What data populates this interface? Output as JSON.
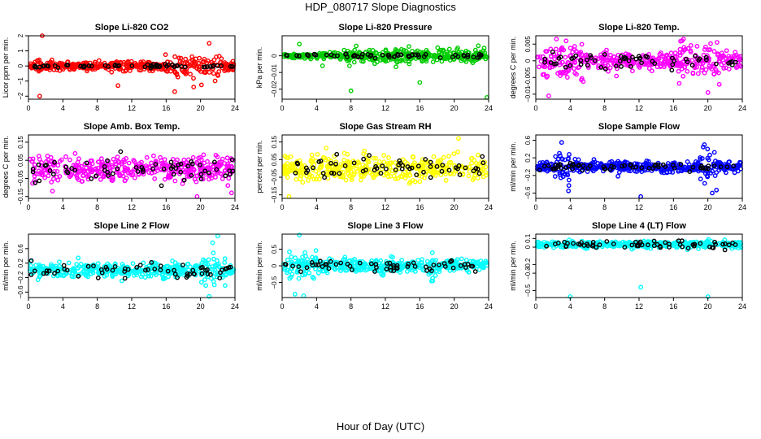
{
  "figure": {
    "title": "HDP_080717  Slope Diagnostics",
    "xlabel": "Hour of Day (UTC)"
  },
  "chart_data": [
    {
      "type": "scatter",
      "title": "Slope Li-820 CO2",
      "ylabel": "Licor ppm per min.",
      "xlim": [
        0,
        24
      ],
      "ylim": [
        -2.2,
        2.0
      ],
      "yticks": [
        -2,
        -1,
        0,
        1,
        2
      ],
      "xticks": [
        0,
        4,
        8,
        12,
        16,
        20,
        24
      ],
      "color": "#ff0000",
      "series": [
        {
          "spread": 0.3,
          "clusters": [
            [
              2.0,
              10.5,
              0.22
            ],
            [
              15.5,
              22.5,
              0.65
            ]
          ],
          "outliers": [
            [
              1.6,
              2.0
            ],
            [
              1.3,
              -2.0
            ],
            [
              10.4,
              -1.3
            ],
            [
              17.0,
              -1.7
            ],
            [
              21.0,
              1.5
            ],
            [
              19.2,
              -1.4
            ]
          ],
          "black_spread": 0.08
        }
      ]
    },
    {
      "type": "scatter",
      "title": "Slope Li-820 Pressure",
      "ylabel": "kPa per min.",
      "xlim": [
        0,
        24
      ],
      "ylim": [
        -0.026,
        0.012
      ],
      "yticks": [
        -0.02,
        -0.01,
        0.0
      ],
      "xticks": [
        0,
        4,
        8,
        12,
        16,
        20,
        24
      ],
      "color": "#00cc00",
      "series": [
        {
          "spread": 0.0015,
          "clusters": [
            [
              7,
              24,
              0.004
            ]
          ],
          "outliers": [
            [
              8.0,
              -0.021
            ],
            [
              2.0,
              0.007
            ],
            [
              23.8,
              -0.025
            ],
            [
              4.7,
              -0.006
            ],
            [
              16.0,
              -0.016
            ],
            [
              22.8,
              0.006
            ]
          ],
          "black_spread": 0.001
        }
      ]
    },
    {
      "type": "scatter",
      "title": "Slope Li-820 Temp.",
      "ylabel": "degrees C per min.",
      "xlim": [
        0,
        24
      ],
      "ylim": [
        -0.0115,
        0.0075
      ],
      "yticks": [
        -0.01,
        -0.005,
        0.0,
        0.005
      ],
      "xticks": [
        0,
        4,
        8,
        12,
        16,
        20,
        24
      ],
      "color": "#ff00ff",
      "series": [
        {
          "spread": 0.0025,
          "clusters": [
            [
              0.5,
              6,
              0.0045
            ],
            [
              16.5,
              22,
              0.0045
            ]
          ],
          "outliers": [
            [
              1.5,
              -0.0105
            ],
            [
              17.0,
              0.006
            ],
            [
              20.0,
              -0.0095
            ],
            [
              2.4,
              0.0065
            ]
          ],
          "black_spread": 0.002
        }
      ]
    },
    {
      "type": "scatter",
      "title": "Slope Amb. Box Temp.",
      "ylabel": "degrees C per min.",
      "xlim": [
        0,
        24
      ],
      "ylim": [
        -0.16,
        0.19
      ],
      "yticks": [
        -0.15,
        -0.05,
        0.05,
        0.15
      ],
      "xticks": [
        0,
        4,
        8,
        12,
        16,
        20,
        24
      ],
      "color": "#ff00ff",
      "series": [
        {
          "spread": 0.06,
          "clusters": [],
          "outliers": [
            [
              19.6,
              -0.15
            ],
            [
              2.8,
              -0.12
            ],
            [
              23.6,
              -0.13
            ]
          ],
          "black_spread": 0.05
        }
      ]
    },
    {
      "type": "scatter",
      "title": "Slope Gas Stream RH",
      "ylabel": "percent per min.",
      "xlim": [
        0,
        24
      ],
      "ylim": [
        -0.17,
        0.19
      ],
      "yticks": [
        -0.15,
        -0.05,
        0.05,
        0.15
      ],
      "xticks": [
        0,
        4,
        8,
        12,
        16,
        20,
        24
      ],
      "color": "#ffff00",
      "series": [
        {
          "spread": 0.065,
          "clusters": [],
          "outliers": [
            [
              0.8,
              -0.16
            ],
            [
              20.5,
              0.17
            ]
          ],
          "black_spread": 0.05
        }
      ]
    },
    {
      "type": "scatter",
      "title": "Slope Sample Flow",
      "ylabel": "ml/min per min.",
      "xlim": [
        0,
        24
      ],
      "ylim": [
        -0.72,
        0.72
      ],
      "yticks": [
        -0.6,
        -0.2,
        0.2,
        0.6
      ],
      "xticks": [
        0,
        4,
        8,
        12,
        16,
        20,
        24
      ],
      "color": "#0000ff",
      "series": [
        {
          "spread": 0.11,
          "clusters": [
            [
              2,
              4,
              0.35
            ],
            [
              19,
              21,
              0.35
            ]
          ],
          "outliers": [
            [
              12.2,
              -0.68
            ],
            [
              3.0,
              0.55
            ],
            [
              20.5,
              -0.6
            ],
            [
              19.6,
              0.5
            ],
            [
              3.8,
              -0.55
            ]
          ],
          "black_spread": 0.07
        }
      ]
    },
    {
      "type": "scatter",
      "title": "Slope Line 2 Flow",
      "ylabel": "ml/min per min.",
      "xlim": [
        0,
        24
      ],
      "ylim": [
        -0.75,
        1.0
      ],
      "yticks": [
        -0.6,
        -0.2,
        0.2,
        0.6
      ],
      "xticks": [
        0,
        4,
        8,
        12,
        16,
        20,
        24
      ],
      "color": "#00ffff",
      "series": [
        {
          "spread": 0.17,
          "clusters": [
            [
              20,
              23,
              0.35
            ]
          ],
          "outliers": [
            [
              22.0,
              0.95
            ],
            [
              21.0,
              -0.72
            ],
            [
              21.6,
              -0.4
            ]
          ],
          "black_spread": 0.15
        }
      ]
    },
    {
      "type": "scatter",
      "title": "Slope Line 3 Flow",
      "ylabel": "ml/min per min.",
      "xlim": [
        0,
        24
      ],
      "ylim": [
        -0.95,
        0.95
      ],
      "yticks": [
        -0.5,
        0.0,
        0.5
      ],
      "xticks": [
        0,
        4,
        8,
        12,
        16,
        20,
        24
      ],
      "color": "#00ffff",
      "series": [
        {
          "spread": 0.17,
          "clusters": [
            [
              0.5,
              4,
              0.35
            ],
            [
              16,
              18,
              0.25
            ]
          ],
          "outliers": [
            [
              2.0,
              0.92
            ],
            [
              1.5,
              -0.85
            ],
            [
              2.5,
              -0.9
            ],
            [
              17.5,
              -0.45
            ]
          ],
          "black_spread": 0.15
        }
      ]
    },
    {
      "type": "scatter",
      "title": "Slope Line 4 (LT) Flow",
      "ylabel": "ml/min per min.",
      "xlim": [
        0,
        24
      ],
      "ylim": [
        -0.58,
        0.15
      ],
      "yticks": [
        -0.5,
        -0.3,
        -0.2,
        0.0,
        0.1
      ],
      "xticks": [
        0,
        4,
        8,
        12,
        16,
        20,
        24
      ],
      "color": "#00ffff",
      "series": [
        {
          "spread": 0.035,
          "clusters": [],
          "base": 0.03,
          "outliers": [
            [
              4.0,
              -0.57
            ],
            [
              12.2,
              -0.46
            ],
            [
              20.0,
              -0.57
            ]
          ],
          "black_spread": 0.04
        }
      ]
    }
  ]
}
